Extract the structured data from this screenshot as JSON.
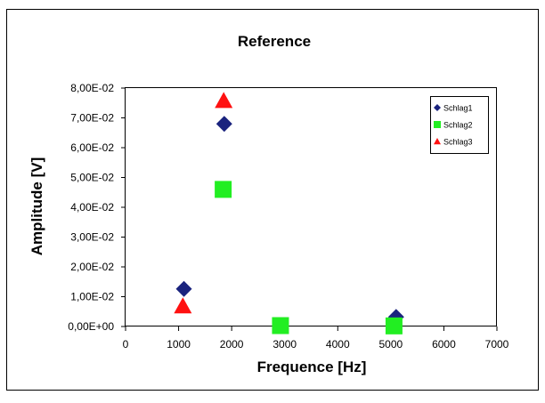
{
  "chart_data": {
    "type": "scatter",
    "title": "Reference",
    "xlabel": "Frequence [Hz]",
    "ylabel": "Amplitude [V]",
    "xlim": [
      0,
      7000
    ],
    "ylim": [
      0,
      0.08
    ],
    "x_ticks": [
      0,
      1000,
      2000,
      3000,
      4000,
      5000,
      6000,
      7000
    ],
    "x_tick_labels": [
      "0",
      "1000",
      "2000",
      "3000",
      "4000",
      "5000",
      "6000",
      "7000"
    ],
    "y_ticks": [
      0,
      0.01,
      0.02,
      0.03,
      0.04,
      0.05,
      0.06,
      0.07,
      0.08
    ],
    "y_tick_labels": [
      "0,00E+00",
      "1,00E-02",
      "2,00E-02",
      "3,00E-02",
      "4,00E-02",
      "5,00E-02",
      "6,00E-02",
      "7,00E-02",
      "8,00E-02"
    ],
    "grid": false,
    "legend_position": "top-right",
    "series": [
      {
        "name": "Schlag1",
        "marker": "diamond",
        "color": "#1a237e",
        "points": [
          {
            "x": 1100,
            "y": 0.0126
          },
          {
            "x": 1860,
            "y": 0.068
          },
          {
            "x": 5100,
            "y": 0.0032
          }
        ]
      },
      {
        "name": "Schlag2",
        "marker": "square",
        "color": "#22ee22",
        "points": [
          {
            "x": 1840,
            "y": 0.046
          },
          {
            "x": 2920,
            "y": 0.0003
          },
          {
            "x": 5060,
            "y": 0.0002
          }
        ]
      },
      {
        "name": "Schlag3",
        "marker": "triangle",
        "color": "#ff1111",
        "points": [
          {
            "x": 1080,
            "y": 0.0068
          },
          {
            "x": 1850,
            "y": 0.0757
          }
        ]
      }
    ]
  }
}
